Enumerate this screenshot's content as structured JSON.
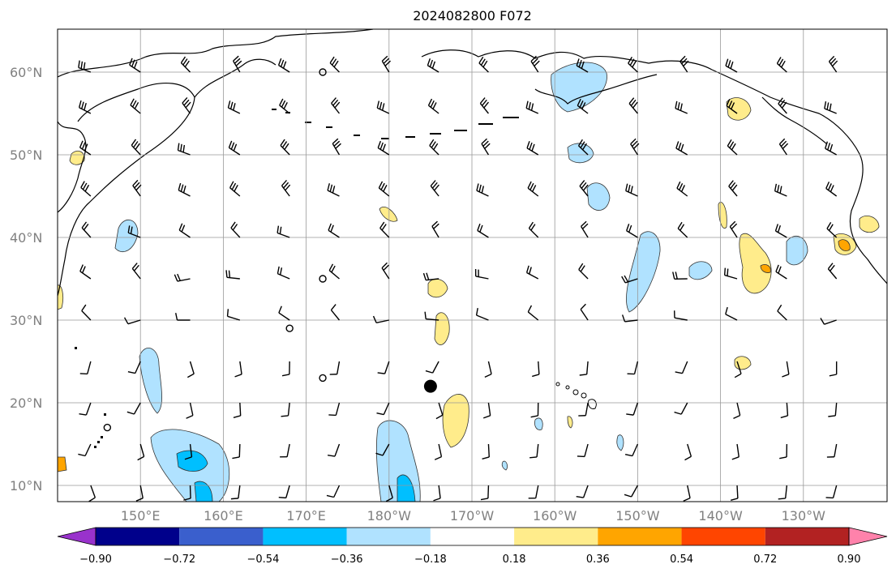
{
  "title": "2024082800 F072",
  "map": {
    "lat_ticks": [
      {
        "value": 60,
        "label": "60°N"
      },
      {
        "value": 50,
        "label": "50°N"
      },
      {
        "value": 40,
        "label": "40°N"
      },
      {
        "value": 30,
        "label": "30°N"
      },
      {
        "value": 20,
        "label": "20°N"
      },
      {
        "value": 10,
        "label": "10°N"
      }
    ],
    "lon_ticks": [
      {
        "value": 150,
        "label": "150°E"
      },
      {
        "value": 160,
        "label": "160°E"
      },
      {
        "value": 170,
        "label": "170°E"
      },
      {
        "value": 180,
        "label": "180°W"
      },
      {
        "value": 190,
        "label": "170°W"
      },
      {
        "value": 200,
        "label": "160°W"
      },
      {
        "value": 210,
        "label": "150°W"
      },
      {
        "value": 220,
        "label": "140°W"
      },
      {
        "value": 230,
        "label": "130°W"
      }
    ],
    "grid": true,
    "storm_marker": {
      "lon": 185,
      "lat": 22
    }
  },
  "colorbar": {
    "colors": [
      "#9932cc",
      "#00008b",
      "#3a5fcd",
      "#00bfff",
      "#b0e2ff",
      "#ffffff",
      "#ffec8b",
      "#ffa500",
      "#ff4500",
      "#b22222",
      "#ff82ab"
    ],
    "tick_labels": [
      "−0.90",
      "−0.72",
      "−0.54",
      "−0.36",
      "−0.18",
      "0.18",
      "0.36",
      "0.54",
      "0.72",
      "0.90"
    ]
  }
}
